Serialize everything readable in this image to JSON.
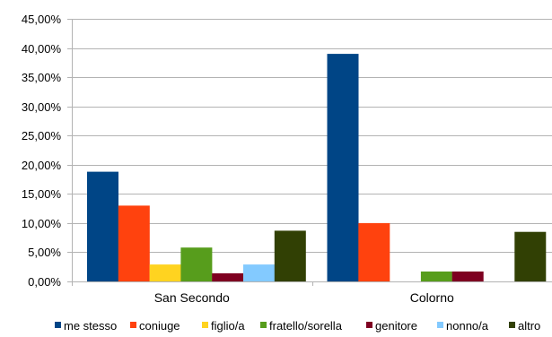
{
  "chart_data": {
    "type": "bar",
    "categories": [
      "San Secondo",
      "Colorno"
    ],
    "series": [
      {
        "name": "me stesso",
        "values": [
          18.8,
          39.0
        ],
        "color": "#004586"
      },
      {
        "name": "coniuge",
        "values": [
          13.0,
          10.0
        ],
        "color": "#FF420E"
      },
      {
        "name": "figlio/a",
        "values": [
          2.9,
          0.0
        ],
        "color": "#FFD320"
      },
      {
        "name": "fratello/sorella",
        "values": [
          5.8,
          1.7
        ],
        "color": "#579D1C"
      },
      {
        "name": "genitore",
        "values": [
          1.4,
          1.7
        ],
        "color": "#7E0021"
      },
      {
        "name": "nonno/a",
        "values": [
          2.9,
          0.0
        ],
        "color": "#83CAFF"
      },
      {
        "name": "altro",
        "values": [
          8.7,
          8.5
        ],
        "color": "#314004"
      }
    ],
    "y_ticks": [
      "0,00%",
      "5,00%",
      "10,00%",
      "15,00%",
      "20,00%",
      "25,00%",
      "30,00%",
      "35,00%",
      "40,00%",
      "45,00%"
    ],
    "ylim": [
      0,
      45
    ],
    "xlabel": "",
    "ylabel": "",
    "title": "",
    "grid": true,
    "legend_position": "bottom"
  }
}
